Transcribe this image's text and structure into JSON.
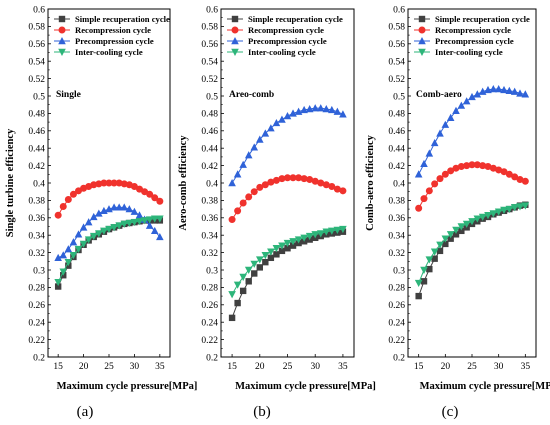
{
  "figure": {
    "legend_position": "top-right",
    "colors": {
      "Simple recuperation cycle": "#404040",
      "Recompression cycle": "#f0322d",
      "Precompression cycle": "#2f62d8",
      "Inter-cooling cycle": "#2db57a"
    },
    "markers": {
      "Simple recuperation cycle": "square",
      "Recompression cycle": "circle",
      "Precompression cycle": "triangle-up",
      "Inter-cooling cycle": "triangle-down"
    }
  },
  "chart_data": [
    {
      "type": "line",
      "panel_label": "(a)",
      "inner_label": "Single",
      "xlabel": "Maximum cycle pressure[MPa]",
      "ylabel": "Single turbine efficiency",
      "xlim": [
        13,
        37
      ],
      "ylim": [
        0.2,
        0.6
      ],
      "xticks": [
        15,
        20,
        25,
        30,
        35
      ],
      "yticks": [
        0.2,
        0.22,
        0.24,
        0.26,
        0.28,
        0.3,
        0.32,
        0.34,
        0.36,
        0.38,
        0.4,
        0.42,
        0.44,
        0.46,
        0.48,
        0.5,
        0.52,
        0.54,
        0.56,
        0.58,
        0.6
      ],
      "grid": false,
      "x": [
        15,
        16,
        17,
        18,
        19,
        20,
        21,
        22,
        23,
        24,
        25,
        26,
        27,
        28,
        29,
        30,
        31,
        32,
        33,
        34,
        35
      ],
      "series": [
        {
          "name": "Simple recuperation cycle",
          "values": [
            0.281,
            0.294,
            0.305,
            0.315,
            0.323,
            0.329,
            0.334,
            0.338,
            0.341,
            0.344,
            0.347,
            0.349,
            0.351,
            0.353,
            0.354,
            0.355,
            0.356,
            0.357,
            0.357,
            0.357,
            0.357
          ]
        },
        {
          "name": "Recompression cycle",
          "values": [
            0.363,
            0.373,
            0.381,
            0.387,
            0.391,
            0.394,
            0.396,
            0.398,
            0.399,
            0.4,
            0.4,
            0.4,
            0.4,
            0.399,
            0.398,
            0.396,
            0.393,
            0.39,
            0.387,
            0.383,
            0.379
          ]
        },
        {
          "name": "Precompression cycle",
          "values": [
            0.314,
            0.317,
            0.324,
            0.332,
            0.341,
            0.349,
            0.355,
            0.361,
            0.365,
            0.368,
            0.37,
            0.372,
            0.372,
            0.372,
            0.37,
            0.367,
            0.363,
            0.358,
            0.351,
            0.345,
            0.338
          ]
        },
        {
          "name": "Inter-cooling cycle",
          "values": [
            0.286,
            0.298,
            0.309,
            0.317,
            0.324,
            0.33,
            0.335,
            0.339,
            0.342,
            0.345,
            0.347,
            0.349,
            0.351,
            0.353,
            0.354,
            0.355,
            0.356,
            0.357,
            0.358,
            0.359,
            0.359
          ]
        }
      ]
    },
    {
      "type": "line",
      "panel_label": "(b)",
      "inner_label": "Areo-comb",
      "xlabel": "Maximum cycle pressure[MPa]",
      "ylabel": "Aero-comb efficiency",
      "xlim": [
        13,
        37
      ],
      "ylim": [
        0.2,
        0.6
      ],
      "xticks": [
        15,
        20,
        25,
        30,
        35
      ],
      "yticks": [
        0.2,
        0.22,
        0.24,
        0.26,
        0.28,
        0.3,
        0.32,
        0.34,
        0.36,
        0.38,
        0.4,
        0.42,
        0.44,
        0.46,
        0.48,
        0.5,
        0.52,
        0.54,
        0.56,
        0.58,
        0.6
      ],
      "grid": false,
      "x": [
        15,
        16,
        17,
        18,
        19,
        20,
        21,
        22,
        23,
        24,
        25,
        26,
        27,
        28,
        29,
        30,
        31,
        32,
        33,
        34,
        35
      ],
      "series": [
        {
          "name": "Simple recuperation cycle",
          "values": [
            0.245,
            0.262,
            0.276,
            0.287,
            0.296,
            0.303,
            0.309,
            0.314,
            0.318,
            0.322,
            0.325,
            0.328,
            0.331,
            0.333,
            0.335,
            0.337,
            0.339,
            0.341,
            0.342,
            0.343,
            0.344
          ]
        },
        {
          "name": "Recompression cycle",
          "values": [
            0.358,
            0.368,
            0.377,
            0.384,
            0.39,
            0.395,
            0.398,
            0.401,
            0.403,
            0.405,
            0.406,
            0.406,
            0.406,
            0.405,
            0.404,
            0.402,
            0.4,
            0.398,
            0.396,
            0.393,
            0.391
          ]
        },
        {
          "name": "Precompression cycle",
          "values": [
            0.4,
            0.41,
            0.421,
            0.432,
            0.441,
            0.45,
            0.457,
            0.463,
            0.469,
            0.473,
            0.477,
            0.48,
            0.482,
            0.484,
            0.485,
            0.486,
            0.486,
            0.485,
            0.484,
            0.482,
            0.479
          ]
        },
        {
          "name": "Inter-cooling cycle",
          "values": [
            0.272,
            0.283,
            0.292,
            0.3,
            0.307,
            0.312,
            0.317,
            0.321,
            0.325,
            0.328,
            0.331,
            0.333,
            0.335,
            0.337,
            0.339,
            0.341,
            0.342,
            0.344,
            0.345,
            0.346,
            0.347
          ]
        }
      ]
    },
    {
      "type": "line",
      "panel_label": "(c)",
      "inner_label": "Comb-aero",
      "xlabel": "Maximum cycle pressure[MPa]",
      "ylabel": "Comb-aero efficiency",
      "xlim": [
        13,
        37
      ],
      "ylim": [
        0.2,
        0.6
      ],
      "xticks": [
        15,
        20,
        25,
        30,
        35
      ],
      "yticks": [
        0.2,
        0.22,
        0.24,
        0.26,
        0.28,
        0.3,
        0.32,
        0.34,
        0.36,
        0.38,
        0.4,
        0.42,
        0.44,
        0.46,
        0.48,
        0.5,
        0.52,
        0.54,
        0.56,
        0.58,
        0.6
      ],
      "grid": false,
      "x": [
        15,
        16,
        17,
        18,
        19,
        20,
        21,
        22,
        23,
        24,
        25,
        26,
        27,
        28,
        29,
        30,
        31,
        32,
        33,
        34,
        35
      ],
      "series": [
        {
          "name": "Simple recuperation cycle",
          "values": [
            0.27,
            0.287,
            0.301,
            0.313,
            0.322,
            0.33,
            0.336,
            0.341,
            0.345,
            0.349,
            0.353,
            0.356,
            0.359,
            0.361,
            0.364,
            0.366,
            0.368,
            0.37,
            0.372,
            0.374,
            0.375
          ]
        },
        {
          "name": "Recompression cycle",
          "values": [
            0.371,
            0.382,
            0.391,
            0.399,
            0.405,
            0.41,
            0.414,
            0.417,
            0.419,
            0.42,
            0.421,
            0.421,
            0.42,
            0.419,
            0.417,
            0.415,
            0.413,
            0.41,
            0.407,
            0.404,
            0.402
          ]
        },
        {
          "name": "Precompression cycle",
          "values": [
            0.41,
            0.422,
            0.434,
            0.446,
            0.457,
            0.467,
            0.475,
            0.483,
            0.489,
            0.494,
            0.499,
            0.502,
            0.505,
            0.507,
            0.508,
            0.508,
            0.507,
            0.506,
            0.505,
            0.503,
            0.502
          ]
        },
        {
          "name": "Inter-cooling cycle",
          "values": [
            0.285,
            0.3,
            0.312,
            0.321,
            0.329,
            0.336,
            0.341,
            0.346,
            0.35,
            0.353,
            0.356,
            0.359,
            0.361,
            0.363,
            0.365,
            0.367,
            0.369,
            0.37,
            0.372,
            0.373,
            0.374
          ]
        }
      ]
    }
  ]
}
